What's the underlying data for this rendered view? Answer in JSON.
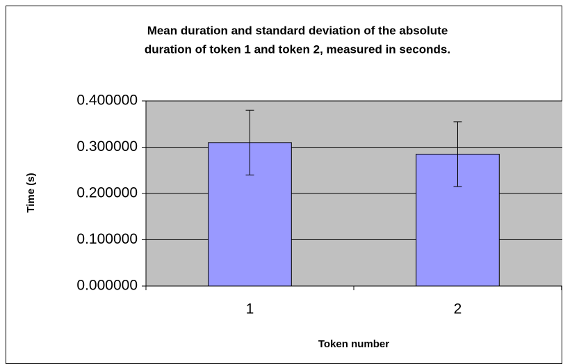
{
  "chart_data": {
    "type": "bar",
    "title": [
      "Mean duration and standard deviation of the absolute",
      "duration of token 1 and token 2, measured in seconds."
    ],
    "xlabel": "Token number",
    "ylabel": "Time (s)",
    "categories": [
      "1",
      "2"
    ],
    "values": [
      0.31,
      0.285
    ],
    "error": [
      0.07,
      0.07
    ],
    "color": "#9999ff",
    "plot_background": "#c0c0c0",
    "ylim": [
      0,
      0.4
    ],
    "yticks": [
      {
        "value": 0,
        "label": "0.000000"
      },
      {
        "value": 0.1,
        "label": "0.100000"
      },
      {
        "value": 0.2,
        "label": "0.200000"
      },
      {
        "value": 0.3,
        "label": "0.300000"
      },
      {
        "value": 0.4,
        "label": "0.400000"
      }
    ],
    "grid": true
  }
}
